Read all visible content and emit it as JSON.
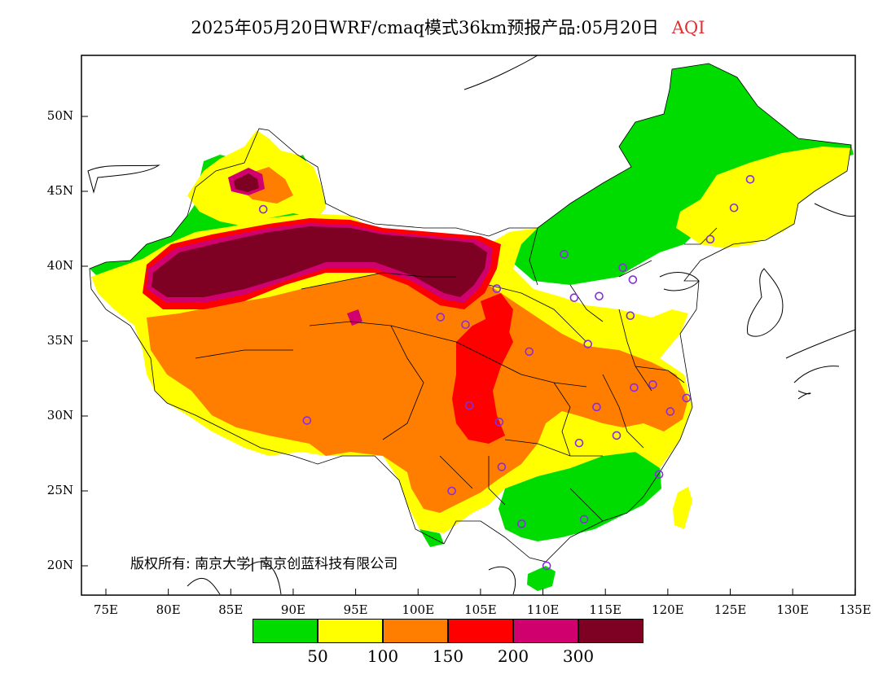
{
  "title": {
    "main": "2025年05月20日WRF/cmaq模式36km预报产品:05月20日",
    "variable": "AQI",
    "variable_color": "#e03030"
  },
  "copyright": "版权所有: 南京大学| 南京创蓝科技有限公司",
  "y_ticks": [
    "50N",
    "45N",
    "40N",
    "35N",
    "30N",
    "25N",
    "20N"
  ],
  "x_ticks": [
    "75E",
    "80E",
    "85E",
    "90E",
    "95E",
    "100E",
    "105E",
    "110E",
    "115E",
    "120E",
    "125E",
    "130E",
    "135E"
  ],
  "legend": {
    "colors": [
      "#00dc00",
      "#ffff00",
      "#ff7e00",
      "#ff0000",
      "#d0006e",
      "#7e0023"
    ],
    "labels": [
      "50",
      "100",
      "150",
      "200",
      "300"
    ]
  },
  "colors": {
    "good": "#00dc00",
    "moderate": "#ffff00",
    "usg": "#ff7e00",
    "unhealthy": "#ff0000",
    "very_unhealthy": "#d0006e",
    "hazardous": "#7e0023",
    "station_marker": "#8a2be2"
  },
  "stations": [
    {
      "lon": 87.6,
      "lat": 43.8
    },
    {
      "lon": 91.1,
      "lat": 29.7
    },
    {
      "lon": 101.8,
      "lat": 36.6
    },
    {
      "lon": 103.8,
      "lat": 36.1
    },
    {
      "lon": 106.3,
      "lat": 38.5
    },
    {
      "lon": 104.1,
      "lat": 30.7
    },
    {
      "lon": 106.5,
      "lat": 29.6
    },
    {
      "lon": 102.7,
      "lat": 25.0
    },
    {
      "lon": 106.7,
      "lat": 26.6
    },
    {
      "lon": 108.9,
      "lat": 34.3
    },
    {
      "lon": 111.7,
      "lat": 40.8
    },
    {
      "lon": 112.5,
      "lat": 37.9
    },
    {
      "lon": 114.5,
      "lat": 38.0
    },
    {
      "lon": 116.4,
      "lat": 39.9
    },
    {
      "lon": 117.2,
      "lat": 39.1
    },
    {
      "lon": 117.0,
      "lat": 36.7
    },
    {
      "lon": 113.6,
      "lat": 34.8
    },
    {
      "lon": 114.3,
      "lat": 30.6
    },
    {
      "lon": 112.9,
      "lat": 28.2
    },
    {
      "lon": 115.9,
      "lat": 28.7
    },
    {
      "lon": 117.3,
      "lat": 31.9
    },
    {
      "lon": 118.8,
      "lat": 32.1
    },
    {
      "lon": 120.2,
      "lat": 30.3
    },
    {
      "lon": 121.5,
      "lat": 31.2
    },
    {
      "lon": 119.3,
      "lat": 26.1
    },
    {
      "lon": 113.3,
      "lat": 23.1
    },
    {
      "lon": 108.3,
      "lat": 22.8
    },
    {
      "lon": 110.3,
      "lat": 20.0
    },
    {
      "lon": 123.4,
      "lat": 41.8
    },
    {
      "lon": 125.3,
      "lat": 43.9
    },
    {
      "lon": 126.6,
      "lat": 45.8
    }
  ]
}
